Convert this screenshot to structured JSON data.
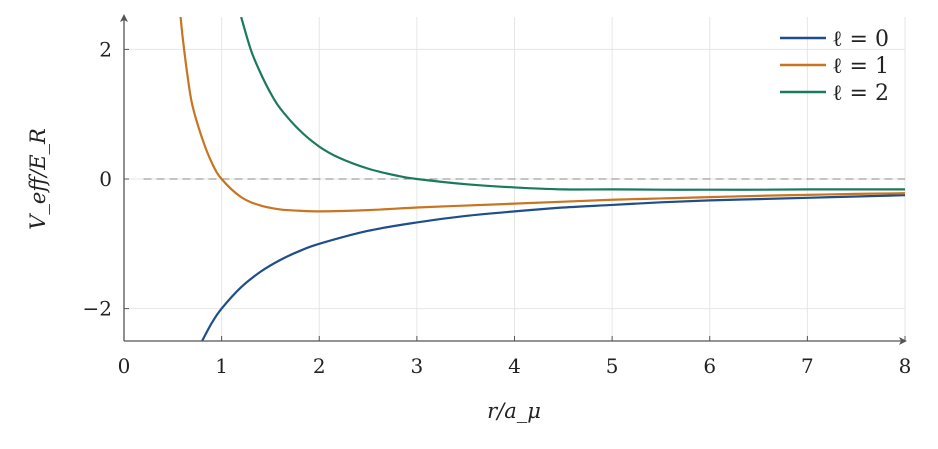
{
  "chart_data": {
    "type": "line",
    "xlabel": "r/a_μ",
    "ylabel": "V_eff/E_R",
    "xlim": [
      0,
      8
    ],
    "ylim": [
      -2.5,
      2.5
    ],
    "x_ticks": [
      "0",
      "1",
      "2",
      "3",
      "4",
      "5",
      "6",
      "7",
      "8"
    ],
    "y_ticks": [
      "−2",
      "0",
      "2"
    ],
    "grid": true,
    "legend_position": "top-right",
    "reference_line": {
      "y": 0,
      "style": "dashed"
    },
    "series": [
      {
        "name": "ℓ = 0",
        "color": "#1f4e8c",
        "x": [
          0.8,
          0.9,
          1.0,
          1.2,
          1.4,
          1.6,
          1.8,
          2.0,
          2.5,
          3.0,
          3.5,
          4.0,
          4.5,
          5.0,
          5.5,
          6.0,
          6.5,
          7.0,
          7.5,
          8.0
        ],
        "y": [
          -2.5,
          -2.22,
          -2.0,
          -1.67,
          -1.43,
          -1.25,
          -1.11,
          -1.0,
          -0.8,
          -0.67,
          -0.57,
          -0.5,
          -0.44,
          -0.4,
          -0.36,
          -0.33,
          -0.31,
          -0.29,
          -0.27,
          -0.25
        ]
      },
      {
        "name": "ℓ = 1",
        "color": "#c87420",
        "x": [
          0.58,
          0.6,
          0.65,
          0.7,
          0.8,
          0.9,
          1.0,
          1.2,
          1.4,
          1.6,
          1.8,
          2.0,
          2.5,
          3.0,
          3.5,
          4.0,
          4.5,
          5.0,
          5.5,
          6.0,
          6.5,
          7.0,
          7.5,
          8.0
        ],
        "y": [
          2.5,
          2.2,
          1.6,
          1.14,
          0.63,
          0.25,
          0.0,
          -0.28,
          -0.41,
          -0.47,
          -0.49,
          -0.5,
          -0.48,
          -0.44,
          -0.41,
          -0.38,
          -0.35,
          -0.32,
          -0.3,
          -0.28,
          -0.26,
          -0.245,
          -0.23,
          -0.22
        ]
      },
      {
        "name": "ℓ = 2",
        "color": "#1a7a5e",
        "x": [
          1.2,
          1.3,
          1.4,
          1.5,
          1.6,
          1.8,
          2.0,
          2.2,
          2.5,
          2.8,
          3.0,
          3.5,
          4.0,
          4.5,
          5.0,
          5.5,
          6.0,
          6.5,
          7.0,
          7.5,
          8.0
        ],
        "y": [
          2.5,
          1.99,
          1.63,
          1.33,
          1.09,
          0.75,
          0.5,
          0.33,
          0.16,
          0.05,
          0.0,
          -0.08,
          -0.13,
          -0.16,
          -0.16,
          -0.165,
          -0.165,
          -0.165,
          -0.16,
          -0.16,
          -0.16
        ]
      }
    ]
  }
}
